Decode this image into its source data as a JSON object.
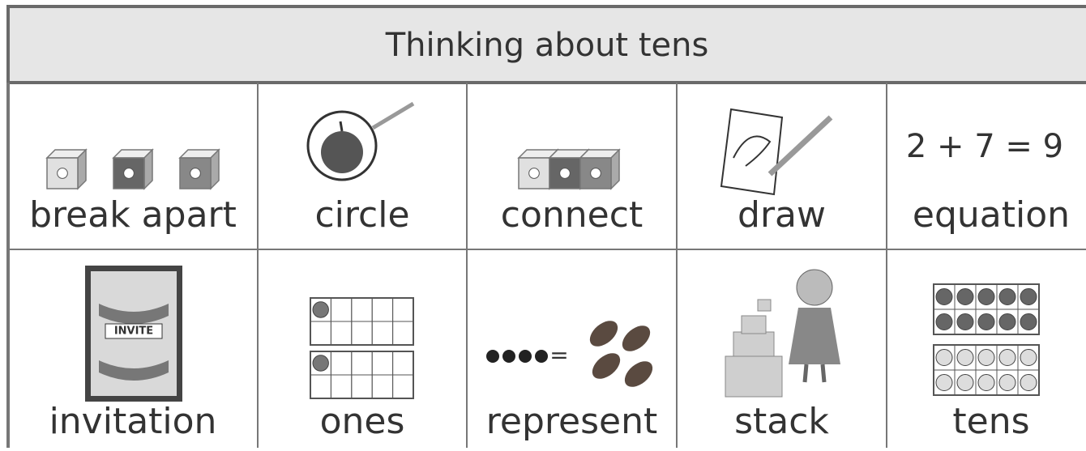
{
  "header": {
    "title": "Thinking about tens"
  },
  "table": {
    "rows": [
      [
        {
          "label": "break apart"
        },
        {
          "label": "circle"
        },
        {
          "label": "connect"
        },
        {
          "label": "draw"
        },
        {
          "label": "equation",
          "icon_text": "2 + 7 = 9"
        }
      ],
      [
        {
          "label": "invitation",
          "icon_text": "INVITE"
        },
        {
          "label": "ones"
        },
        {
          "label": "represent"
        },
        {
          "label": "stack"
        },
        {
          "label": "tens"
        }
      ]
    ]
  }
}
